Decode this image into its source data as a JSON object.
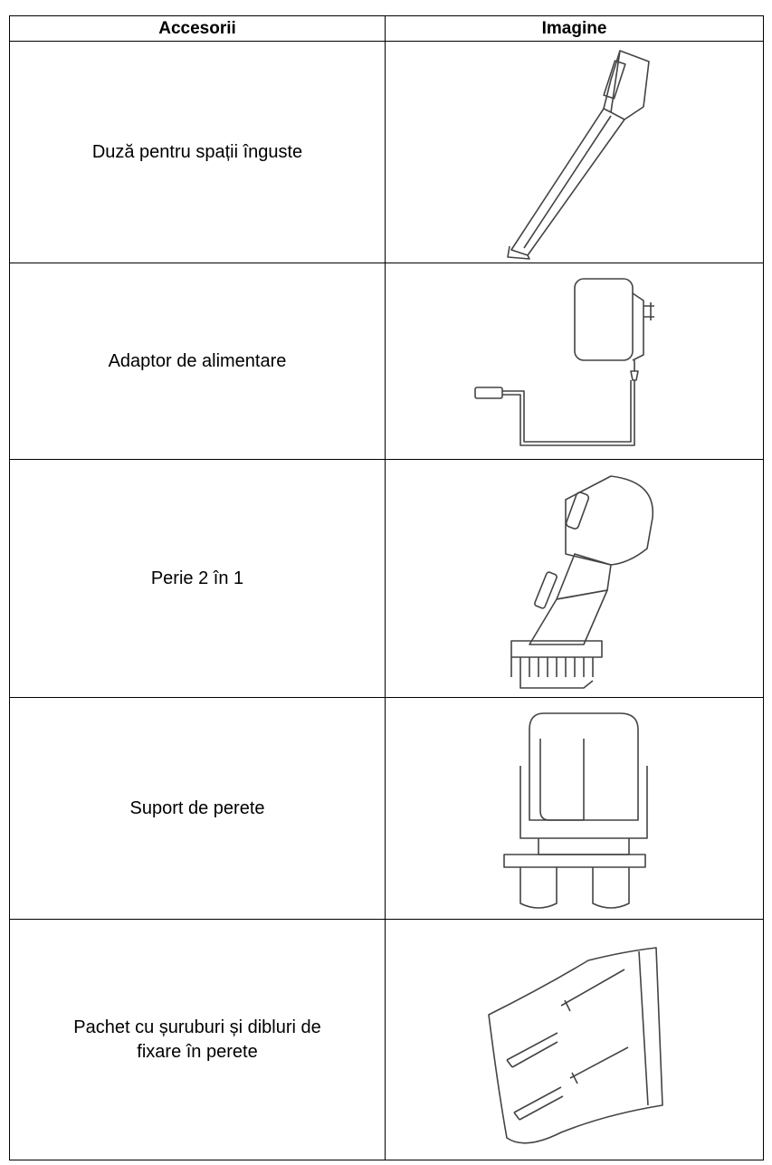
{
  "table": {
    "headers": [
      "Accesorii",
      "Imagine"
    ],
    "rows": [
      [
        "Duză pentru spații înguste"
      ],
      [
        "Adaptor de alimentare"
      ],
      [
        "Perie 2 în 1"
      ],
      [
        "Suport de perete"
      ],
      [
        "Pachet cu șuruburi și dibluri de fixare în perete"
      ]
    ]
  }
}
